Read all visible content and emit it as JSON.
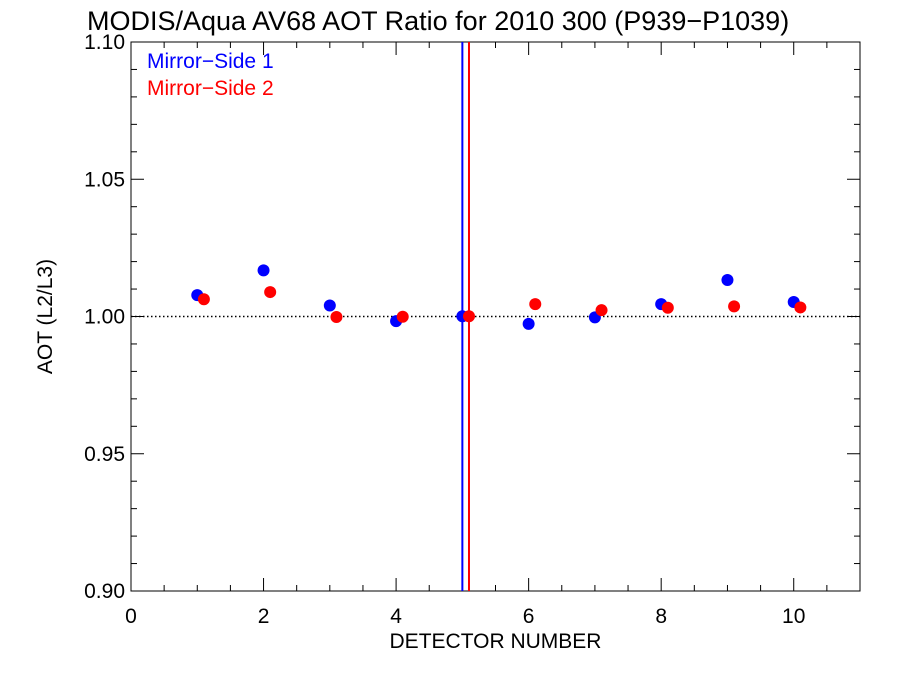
{
  "chart_data": {
    "type": "scatter",
    "title": "MODIS/Aqua AV68 AOT Ratio for 2010 300 (P939−P1039)",
    "xlabel": "DETECTOR NUMBER",
    "ylabel": "AOT (L2/L3)",
    "xlim": [
      0,
      11
    ],
    "ylim": [
      0.9,
      1.1
    ],
    "x_ticks": [
      {
        "value": 0,
        "label": "0"
      },
      {
        "value": 2,
        "label": "2"
      },
      {
        "value": 4,
        "label": "4"
      },
      {
        "value": 6,
        "label": "6"
      },
      {
        "value": 8,
        "label": "8"
      },
      {
        "value": 10,
        "label": "10"
      }
    ],
    "y_ticks": [
      {
        "value": 0.9,
        "label": "0.90"
      },
      {
        "value": 0.95,
        "label": "0.95"
      },
      {
        "value": 1.0,
        "label": "1.00"
      },
      {
        "value": 1.05,
        "label": "1.05"
      },
      {
        "value": 1.1,
        "label": "1.10"
      }
    ],
    "x_minor_step": 0.5,
    "y_minor_step": 0.01,
    "grid": false,
    "legend_position": "top-left",
    "reference_line": {
      "y": 1.0,
      "style": "dotted",
      "color": "#000000"
    },
    "vertical_lines": [
      {
        "x": 5.0,
        "color": "#0000ff"
      },
      {
        "x": 5.1,
        "color": "#ff0000"
      }
    ],
    "series": [
      {
        "name": "Mirror−Side 1",
        "color": "#0000ff",
        "x": [
          1,
          2,
          3,
          4,
          5,
          6,
          7,
          8,
          9,
          10
        ],
        "y": [
          1.0078,
          1.0168,
          1.004,
          0.9983,
          1.0001,
          0.9973,
          0.9997,
          1.0045,
          1.0133,
          1.0053
        ]
      },
      {
        "name": "Mirror−Side 2",
        "color": "#ff0000",
        "x": [
          1.1,
          2.1,
          3.1,
          4.1,
          5.1,
          6.1,
          7.1,
          8.1,
          9.1,
          10.1
        ],
        "y": [
          1.0063,
          1.0089,
          0.9998,
          0.9999,
          1.0001,
          1.0045,
          1.0023,
          1.0032,
          1.0037,
          1.0033
        ]
      }
    ]
  }
}
